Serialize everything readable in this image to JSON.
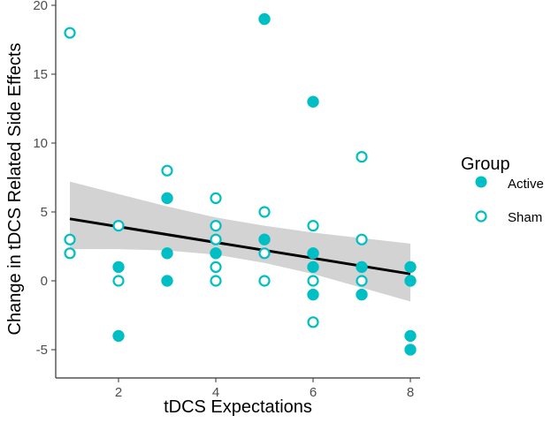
{
  "chart_data": {
    "type": "scatter",
    "title": "",
    "xlabel": "tDCS Expectations",
    "ylabel": "Change in tDCS Related Side Effects",
    "xlim": [
      0.7,
      8.3
    ],
    "ylim": [
      -6.5,
      20.4
    ],
    "xticks": [
      2,
      4,
      6,
      8
    ],
    "yticks": [
      -5,
      0,
      5,
      10,
      15,
      20
    ],
    "grid": false,
    "legend": {
      "title": "Group",
      "placement": "right",
      "entries": [
        "Active",
        "Sham"
      ]
    },
    "colors": {
      "points": "#00BFC4",
      "line": "#000000",
      "band": "#D3D3D3"
    },
    "series": [
      {
        "name": "Active",
        "marker": "filled-circle",
        "points": [
          [
            2,
            1
          ],
          [
            2,
            -4
          ],
          [
            3,
            6
          ],
          [
            3,
            2
          ],
          [
            3,
            0
          ],
          [
            4,
            2
          ],
          [
            5,
            19
          ],
          [
            5,
            3
          ],
          [
            6,
            13
          ],
          [
            6,
            2
          ],
          [
            6,
            1
          ],
          [
            6,
            -1
          ],
          [
            7,
            1
          ],
          [
            7,
            -1
          ],
          [
            8,
            1
          ],
          [
            8,
            0
          ],
          [
            8,
            -4
          ],
          [
            8,
            -5
          ]
        ]
      },
      {
        "name": "Sham",
        "marker": "open-circle",
        "points": [
          [
            1,
            18
          ],
          [
            1,
            3
          ],
          [
            1,
            2
          ],
          [
            2,
            4
          ],
          [
            2,
            0
          ],
          [
            3,
            8
          ],
          [
            4,
            6
          ],
          [
            4,
            4
          ],
          [
            4,
            3
          ],
          [
            4,
            1
          ],
          [
            4,
            0
          ],
          [
            5,
            5
          ],
          [
            5,
            2
          ],
          [
            5,
            0
          ],
          [
            6,
            4
          ],
          [
            6,
            0
          ],
          [
            6,
            -3
          ],
          [
            7,
            9
          ],
          [
            7,
            3
          ],
          [
            7,
            0
          ]
        ]
      }
    ],
    "fit": {
      "type": "linear",
      "x": [
        1,
        8
      ],
      "y": [
        4.5,
        0.5
      ]
    },
    "confidence_band": {
      "x": [
        1,
        2,
        3,
        4,
        5,
        6,
        7,
        8
      ],
      "upper": [
        7.2,
        6.3,
        5.4,
        4.6,
        4.0,
        3.5,
        3.1,
        2.7
      ],
      "lower": [
        2.3,
        2.3,
        2.2,
        1.9,
        1.3,
        0.5,
        -0.5,
        -1.5
      ]
    }
  }
}
